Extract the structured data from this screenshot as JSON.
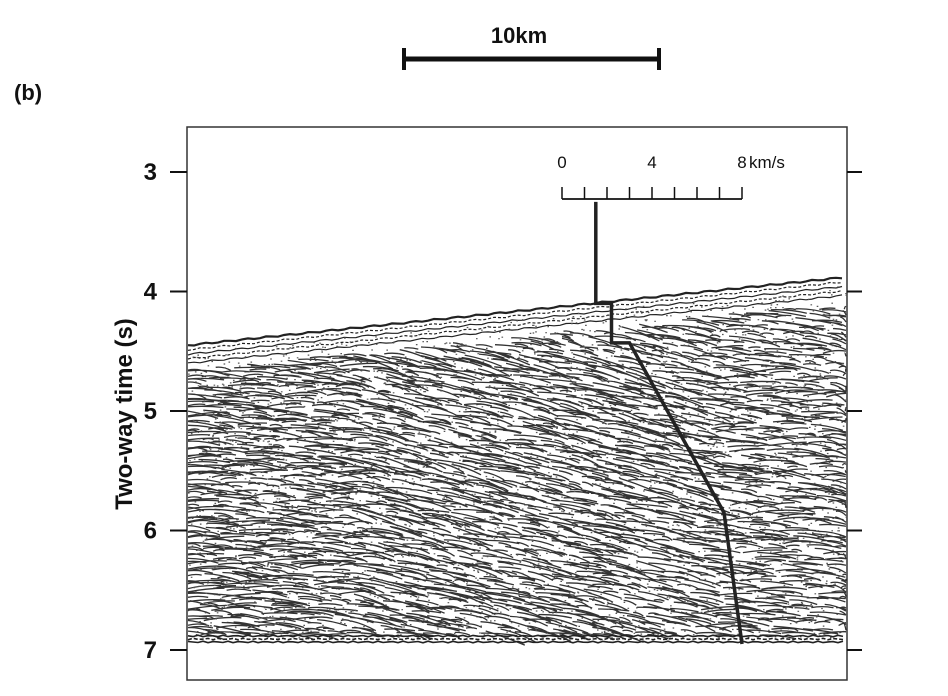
{
  "panel_label": "(b)",
  "scale_bar": {
    "label": "10km"
  },
  "y_axis": {
    "label": "Two-way time (s)",
    "ticks": [
      "3",
      "4",
      "5",
      "6",
      "7"
    ],
    "min": 3,
    "max": 7
  },
  "velocity_scale": {
    "ticks": [
      "0",
      "4",
      "8"
    ],
    "unit": "km/s",
    "min": 0,
    "max": 8,
    "minor_step": 1
  },
  "velocity_profile": [
    {
      "v": 1.5,
      "t": 3.25
    },
    {
      "v": 1.5,
      "t": 4.1
    },
    {
      "v": 2.2,
      "t": 4.1
    },
    {
      "v": 2.2,
      "t": 4.43
    },
    {
      "v": 3.0,
      "t": 4.43
    },
    {
      "v": 6.9,
      "t": 5.75
    },
    {
      "v": 7.2,
      "t": 5.85
    },
    {
      "v": 8.0,
      "t": 6.95
    }
  ],
  "seafloor": {
    "left_time": 4.45,
    "right_time": 3.88
  },
  "colors": {
    "ink": "#111111",
    "background": "#ffffff"
  }
}
